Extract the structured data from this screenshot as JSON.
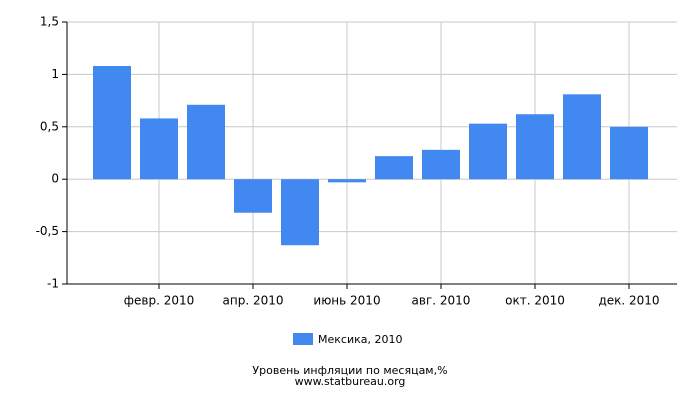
{
  "chart_data": {
    "type": "bar",
    "title": "Уровень инфляции по месяцам,%",
    "subtitle": "www.statbureau.org",
    "categories": [
      null,
      "февр. 2010",
      null,
      "апр. 2010",
      null,
      "июнь 2010",
      null,
      "авг. 2010",
      null,
      "окт. 2010",
      null,
      "дек. 2010"
    ],
    "series": [
      {
        "name": "Мексика, 2010",
        "color": "#4189f0",
        "values": [
          1.08,
          0.58,
          0.71,
          -0.32,
          -0.63,
          -0.03,
          0.22,
          0.28,
          0.53,
          0.62,
          0.81,
          0.5
        ]
      }
    ],
    "ylim": [
      -1,
      1.5
    ],
    "yticks": [
      -1,
      {
        "value": -0.5,
        "label": "-0,5"
      },
      0,
      {
        "value": 0.5,
        "label": "0,5"
      },
      1,
      {
        "value": 1.5,
        "label": "1,5"
      }
    ],
    "grid": true
  }
}
